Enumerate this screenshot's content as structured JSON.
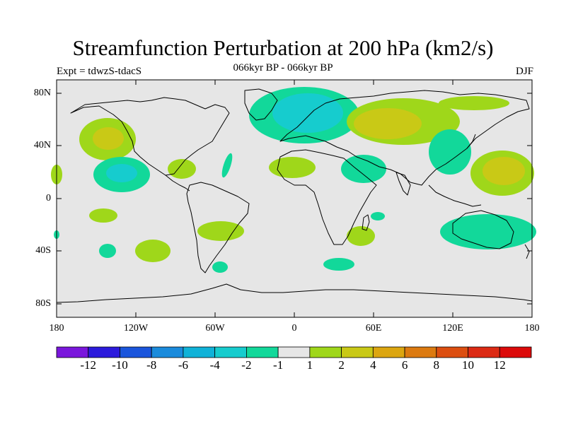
{
  "header": {
    "title": "Streamfunction Perturbation at 200 hPa (km2/s)",
    "subtitle": "066kyr BP - 066kyr BP",
    "left_label": "Expt = tdwzS-tdacS",
    "right_label": "DJF"
  },
  "axes": {
    "lat_ticks": [
      "80N",
      "40N",
      "0",
      "40S",
      "80S"
    ],
    "lon_ticks": [
      "180",
      "120W",
      "60W",
      "0",
      "60E",
      "120E",
      "180"
    ]
  },
  "colorbar": {
    "labels": [
      "-12",
      "-10",
      "-8",
      "-6",
      "-4",
      "-2",
      "-1",
      "1",
      "2",
      "4",
      "6",
      "8",
      "10",
      "12"
    ],
    "colors": [
      "#7a16dc",
      "#2c1adc",
      "#1a55dc",
      "#1a8bdc",
      "#10b2d8",
      "#16ccce",
      "#12d89a",
      "#e6e6e6",
      "#9fd71a",
      "#c9c916",
      "#dca610",
      "#dc7a10",
      "#dc4e10",
      "#dc2a14",
      "#dc0a0a"
    ]
  },
  "map": {
    "background_color": "#e6e6e6",
    "coastline_color": "#000000"
  }
}
